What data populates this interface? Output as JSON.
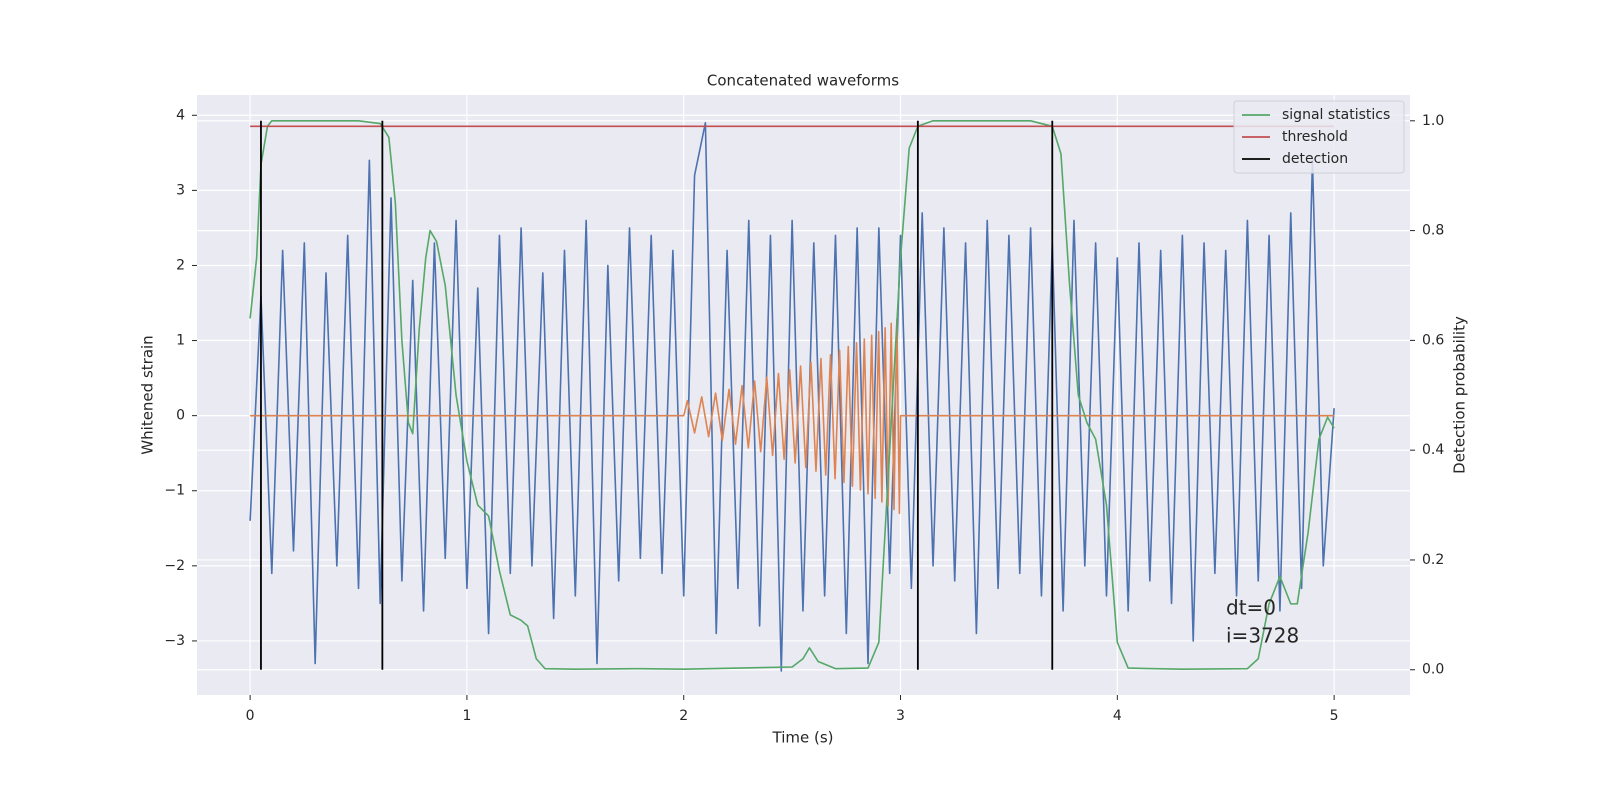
{
  "chart_data": {
    "type": "line",
    "title": "Concatenated waveforms",
    "xlabel": "Time (s)",
    "ylabel": "Whitened strain",
    "y2label": "Detection probability",
    "annotations": [
      "dt=0",
      "i=3728"
    ],
    "xlim": [
      -0.245,
      5.35
    ],
    "ylim": [
      -3.72,
      4.27
    ],
    "y2lim": [
      -0.046,
      1.047
    ],
    "xticks": [
      0,
      1,
      2,
      3,
      4,
      5
    ],
    "yticks": [
      {
        "value": -3,
        "label": "−3"
      },
      {
        "value": -2,
        "label": "−2"
      },
      {
        "value": -1,
        "label": "−1"
      },
      0,
      1,
      2,
      3,
      4
    ],
    "y2ticks": [
      {
        "value": 0,
        "label": "0.0"
      },
      {
        "value": 0.2,
        "label": "0.2"
      },
      {
        "value": 0.4,
        "label": "0.4"
      },
      {
        "value": 0.6,
        "label": "0.6"
      },
      {
        "value": 0.8,
        "label": "0.8"
      },
      {
        "value": 1,
        "label": "1.0"
      }
    ],
    "grid": true,
    "legend": "upper right",
    "series": [
      {
        "color": "#4c72b0",
        "x": [
          0,
          0.05,
          0.1,
          0.15,
          0.2,
          0.25,
          0.3,
          0.35,
          0.4,
          0.45,
          0.5,
          0.55,
          0.6,
          0.65,
          0.7,
          0.75,
          0.8,
          0.85,
          0.9,
          0.95,
          1,
          1.05,
          1.1,
          1.15,
          1.2,
          1.25,
          1.3,
          1.35,
          1.4,
          1.45,
          1.5,
          1.55,
          1.6,
          1.65,
          1.7,
          1.75,
          1.8,
          1.85,
          1.9,
          1.95,
          2,
          2.05,
          2.1,
          2.15,
          2.2,
          2.25,
          2.3,
          2.35,
          2.4,
          2.45,
          2.5,
          2.55,
          2.6,
          2.65,
          2.7,
          2.75,
          2.8,
          2.85,
          2.9,
          2.95,
          3,
          3.05,
          3.1,
          3.15,
          3.2,
          3.25,
          3.3,
          3.35,
          3.4,
          3.45,
          3.5,
          3.55,
          3.6,
          3.65,
          3.7,
          3.75,
          3.8,
          3.85,
          3.9,
          3.95,
          4,
          4.05,
          4.1,
          4.15,
          4.2,
          4.25,
          4.3,
          4.35,
          4.4,
          4.45,
          4.5,
          4.55,
          4.6,
          4.65,
          4.7,
          4.75,
          4.8,
          4.85,
          4.9,
          4.95,
          5
        ],
        "values": [
          -1.4,
          1.6,
          -2.1,
          2.2,
          -1.8,
          2.3,
          -3.3,
          1.9,
          -2.0,
          2.4,
          -2.3,
          3.4,
          -2.5,
          2.9,
          -2.2,
          1.8,
          -2.6,
          2.3,
          -1.9,
          2.6,
          -2.3,
          1.7,
          -2.9,
          2.4,
          -2.1,
          2.5,
          -2.0,
          1.9,
          -2.7,
          2.2,
          -2.4,
          2.6,
          -3.3,
          2.0,
          -2.2,
          2.5,
          -1.9,
          2.4,
          -2.1,
          2.2,
          -2.4,
          3.2,
          3.9,
          -2.9,
          2.2,
          -2.3,
          2.6,
          -2.8,
          2.4,
          -3.4,
          2.6,
          -2.6,
          2.3,
          -2.4,
          2.4,
          -2.9,
          2.5,
          -3.3,
          2.5,
          -2.1,
          2.4,
          -2.3,
          2.7,
          -2.0,
          2.5,
          -2.2,
          2.3,
          -2.9,
          2.6,
          -2.3,
          2.4,
          -2.1,
          2.5,
          -2.4,
          2.3,
          -2.6,
          2.6,
          -2.0,
          2.3,
          -2.4,
          2.1,
          -2.6,
          2.3,
          -2.2,
          2.2,
          -2.5,
          2.4,
          -3.0,
          2.3,
          -2.1,
          2.2,
          -2.4,
          2.6,
          -2.2,
          2.4,
          -2.6,
          2.7,
          -2.3,
          3.4,
          -2.0,
          0.1
        ]
      },
      {
        "color": "#dd8452",
        "x": [
          0,
          2,
          2.017,
          2.05,
          2.083,
          2.115,
          2.147,
          2.178,
          2.209,
          2.239,
          2.269,
          2.298,
          2.327,
          2.355,
          2.383,
          2.41,
          2.437,
          2.463,
          2.489,
          2.514,
          2.539,
          2.563,
          2.587,
          2.61,
          2.633,
          2.655,
          2.677,
          2.698,
          2.719,
          2.739,
          2.759,
          2.778,
          2.797,
          2.815,
          2.833,
          2.85,
          2.867,
          2.883,
          2.899,
          2.914,
          2.929,
          2.943,
          2.957,
          2.97,
          2.983,
          2.995,
          3,
          5
        ],
        "values": [
          0,
          0,
          0.2,
          -0.23,
          0.25,
          -0.28,
          0.3,
          -0.33,
          0.35,
          -0.38,
          0.4,
          -0.43,
          0.46,
          -0.48,
          0.51,
          -0.53,
          0.56,
          -0.58,
          0.61,
          -0.63,
          0.66,
          -0.69,
          0.71,
          -0.74,
          0.76,
          -0.79,
          0.81,
          -0.84,
          0.87,
          -0.89,
          0.92,
          -0.94,
          0.97,
          -0.99,
          1.02,
          -1.04,
          1.07,
          -1.1,
          1.12,
          -1.15,
          1.17,
          -1.2,
          1.23,
          -1.25,
          1.28,
          -1.3,
          0,
          0
        ]
      },
      {
        "name": "signal statistics",
        "color": "#55a868",
        "axis": "y2",
        "x": [
          0,
          0.03,
          0.05,
          0.08,
          0.1,
          0.5,
          0.6,
          0.64,
          0.67,
          0.7,
          0.73,
          0.75,
          0.78,
          0.81,
          0.83,
          0.86,
          0.9,
          0.95,
          1,
          1.05,
          1.1,
          1.15,
          1.2,
          1.25,
          1.28,
          1.32,
          1.36,
          1.5,
          1.8,
          2,
          2.5,
          2.55,
          2.58,
          2.62,
          2.7,
          2.85,
          2.9,
          2.95,
          3,
          3.04,
          3.08,
          3.15,
          3.6,
          3.7,
          3.74,
          3.78,
          3.82,
          3.86,
          3.9,
          3.95,
          4,
          4.05,
          4.3,
          4.6,
          4.65,
          4.7,
          4.75,
          4.8,
          4.83,
          4.88,
          4.93,
          4.97,
          5
        ],
        "values": [
          0.64,
          0.75,
          0.92,
          0.99,
          1,
          1,
          0.995,
          0.97,
          0.85,
          0.6,
          0.45,
          0.43,
          0.62,
          0.75,
          0.8,
          0.78,
          0.7,
          0.5,
          0.38,
          0.3,
          0.28,
          0.18,
          0.1,
          0.09,
          0.08,
          0.02,
          0.002,
          0.001,
          0.002,
          0.001,
          0.005,
          0.02,
          0.04,
          0.015,
          0.002,
          0.003,
          0.05,
          0.4,
          0.75,
          0.95,
          0.99,
          1,
          1,
          0.99,
          0.94,
          0.7,
          0.5,
          0.45,
          0.42,
          0.3,
          0.05,
          0.003,
          0.001,
          0.002,
          0.02,
          0.12,
          0.17,
          0.12,
          0.12,
          0.25,
          0.42,
          0.46,
          0.44
        ]
      },
      {
        "name": "threshold",
        "color": "#c44e52",
        "axis": "y2",
        "x": [
          0,
          5
        ],
        "values": [
          0.99,
          0.99
        ]
      }
    ],
    "detection": {
      "name": "detection",
      "color": "#000000",
      "x": [
        0.05,
        0.61,
        3.08,
        3.7
      ],
      "ylim": [
        0,
        1
      ]
    }
  }
}
